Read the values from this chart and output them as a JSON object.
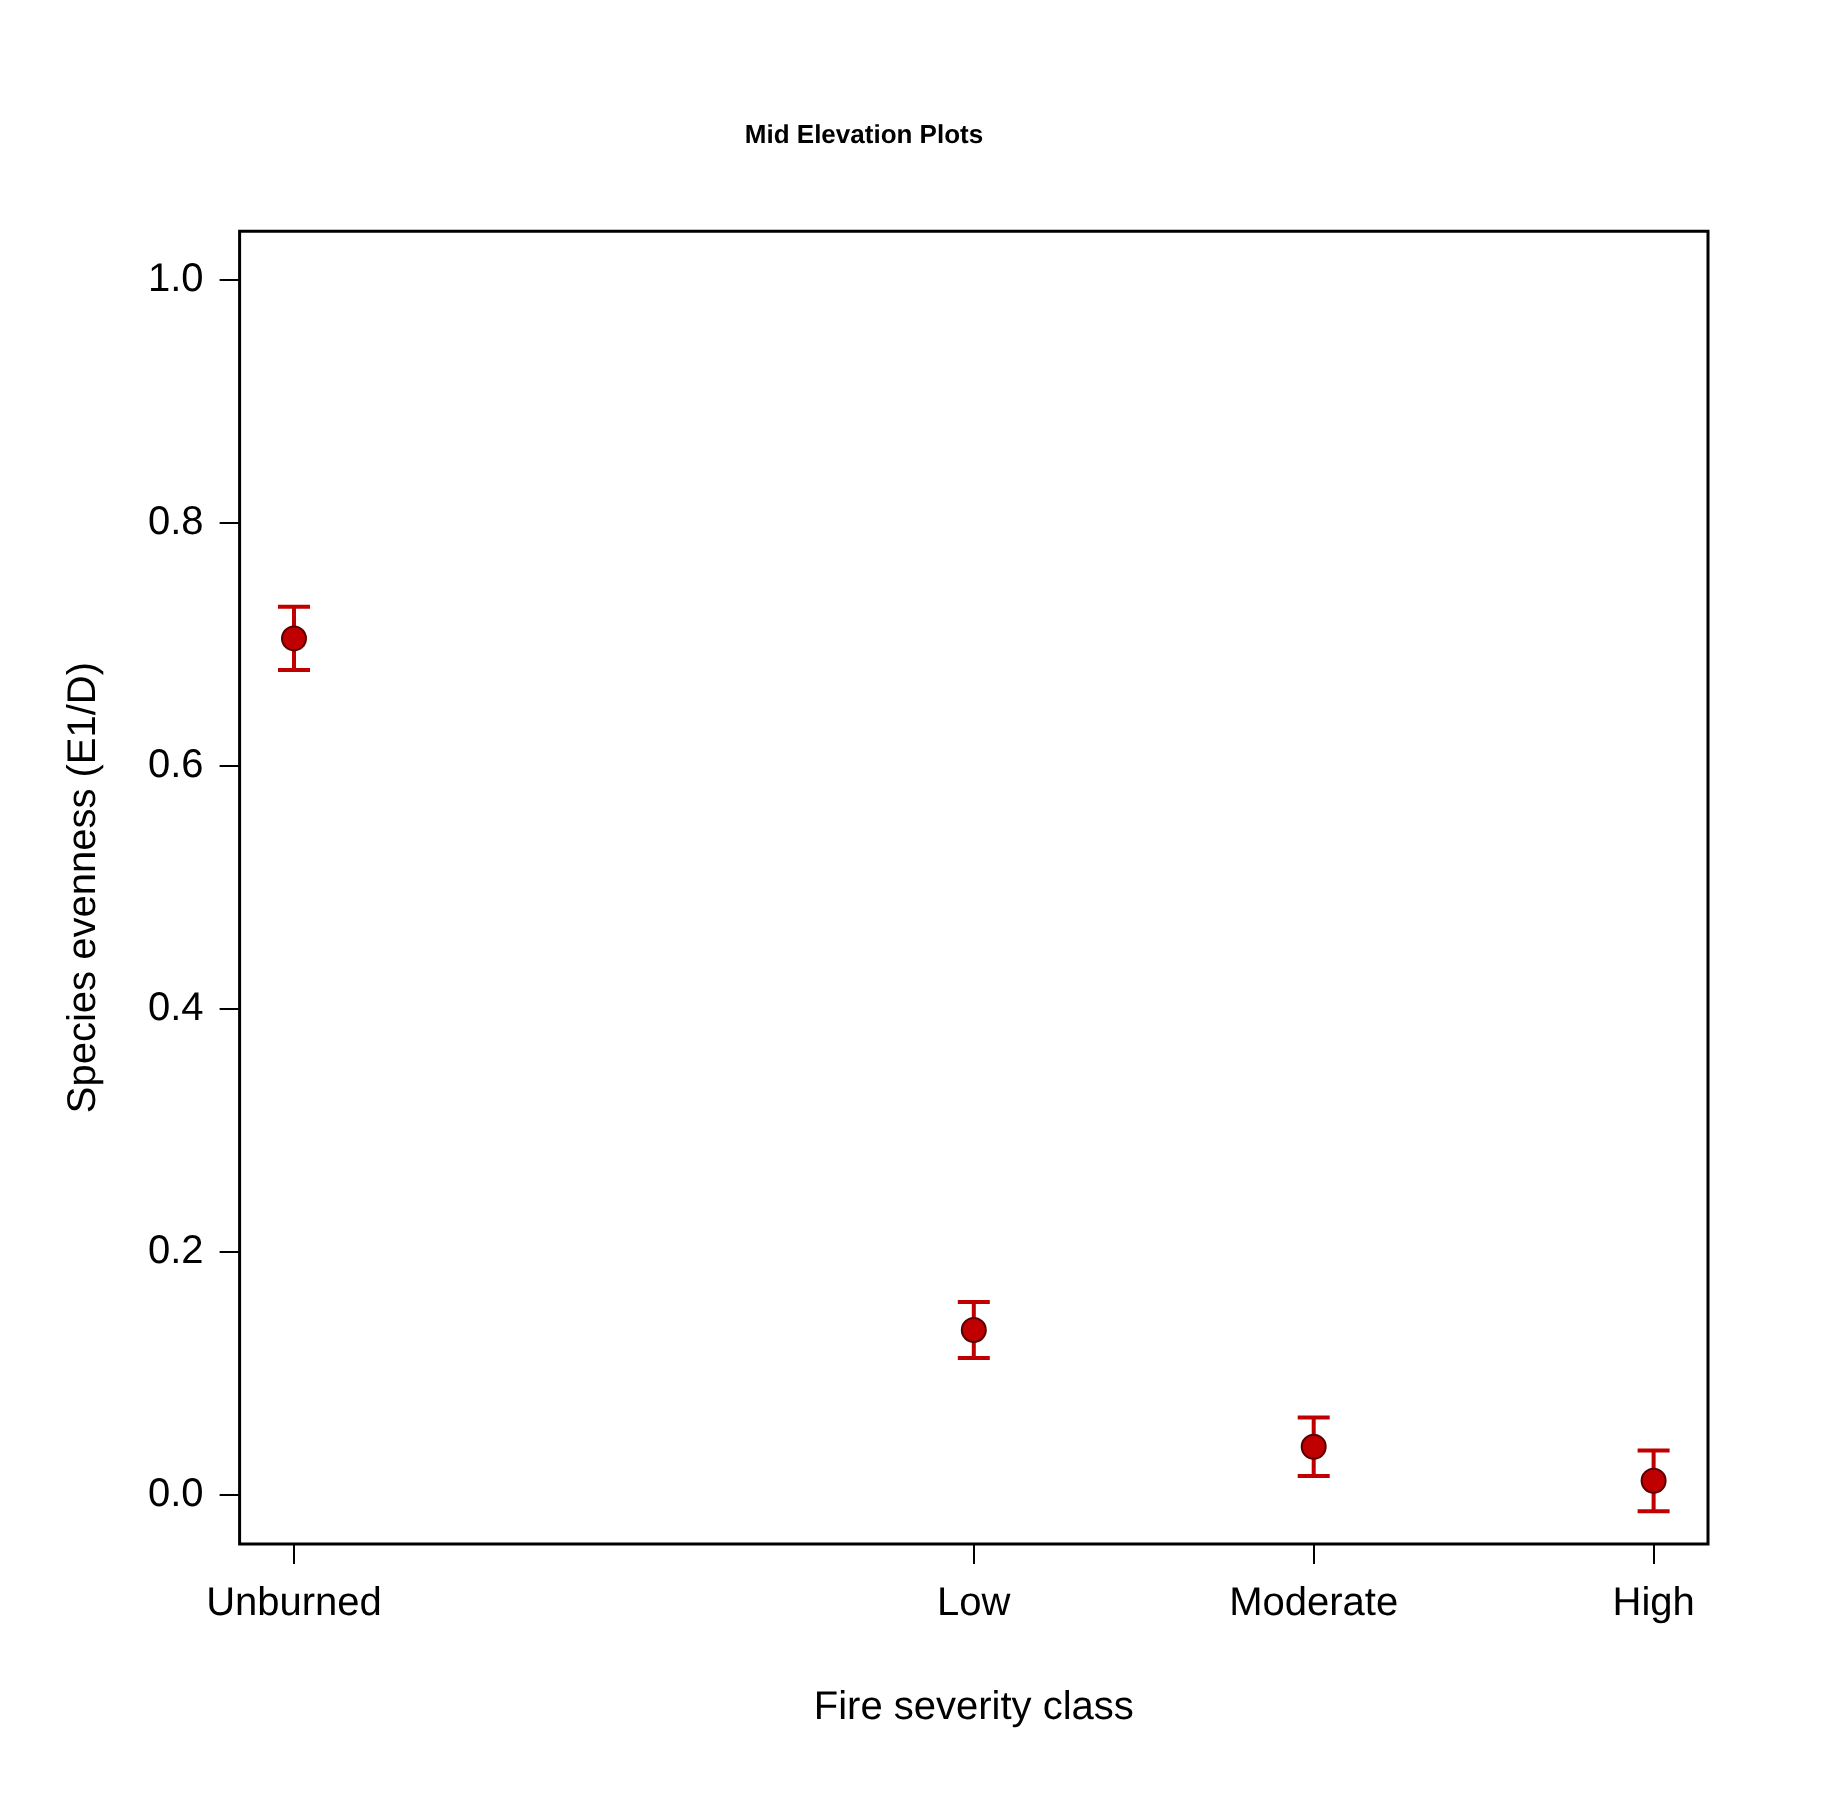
{
  "chart_data": {
    "type": "scatter",
    "title": "Mid Elevation Plots",
    "xlabel": "Fire severity class",
    "ylabel": "Species evenness (E1/D)",
    "categories": [
      "Unburned",
      null,
      "Low",
      "Moderate",
      "High"
    ],
    "series": [
      {
        "color": "#c00000",
        "values": [
          0.705,
          null,
          0.136,
          0.04,
          0.012
        ],
        "errors": [
          0.026,
          null,
          0.023,
          0.024,
          0.025
        ]
      }
    ],
    "ylim": [
      -0.04,
      1.04
    ],
    "yticks": [
      {
        "value": 0,
        "label": "0.0"
      },
      {
        "value": 0.2,
        "label": "0.2"
      },
      {
        "value": 0.4,
        "label": "0.4"
      },
      {
        "value": 0.6,
        "label": "0.6"
      },
      {
        "value": 0.8,
        "label": "0.8"
      },
      {
        "value": 1,
        "label": "1.0"
      }
    ],
    "grid": false,
    "legend": false,
    "marker": "circle"
  }
}
